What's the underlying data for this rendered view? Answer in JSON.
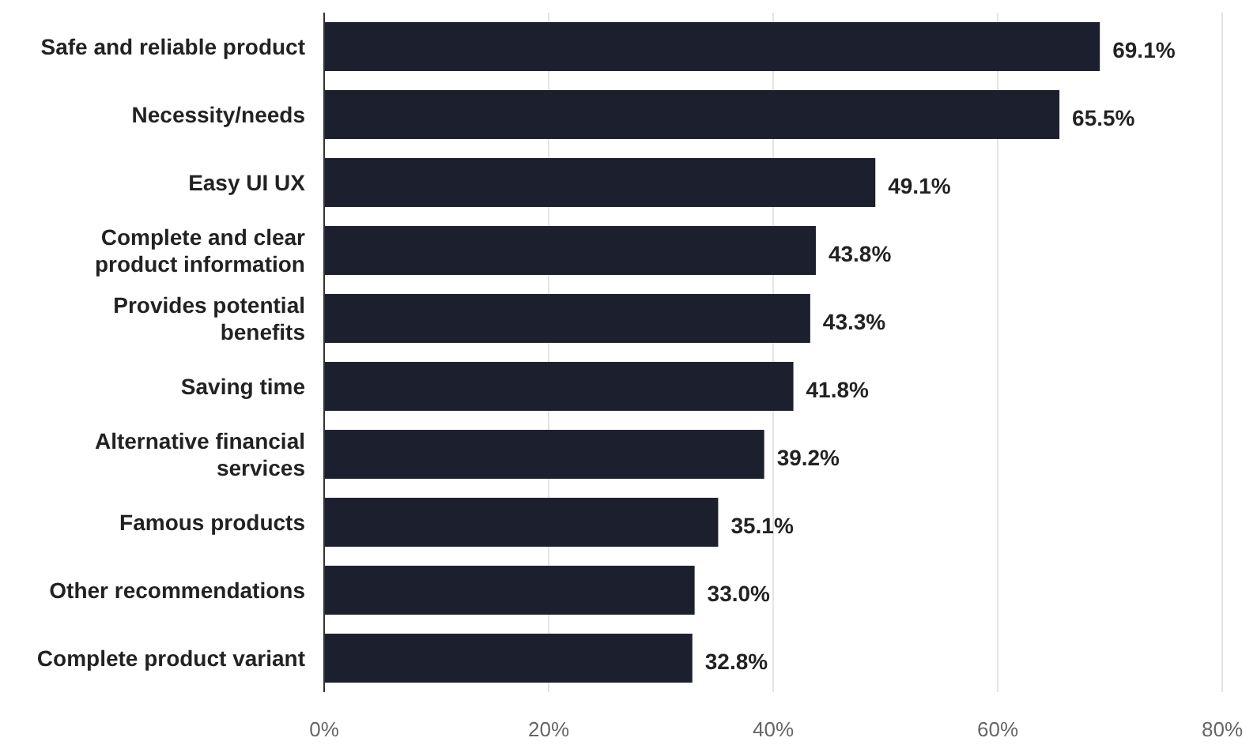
{
  "chart_data": {
    "type": "bar",
    "orientation": "horizontal",
    "categories": [
      "Safe and reliable product",
      "Necessity/needs",
      "Easy UI UX",
      "Complete and clear product information",
      "Provides potential benefits",
      "Saving time",
      "Alternative financial services",
      "Famous products",
      "Other recommendations",
      "Complete product variant"
    ],
    "values": [
      69.1,
      65.5,
      49.1,
      43.8,
      43.3,
      41.8,
      39.2,
      35.1,
      33.0,
      32.8
    ],
    "value_labels": [
      "69.1%",
      "65.5%",
      "49.1%",
      "43.8%",
      "43.3%",
      "41.8%",
      "39.2%",
      "35.1%",
      "33.0%",
      "32.8%"
    ],
    "color": "#1c1f2e",
    "xlim": [
      0,
      80
    ],
    "xticks": [
      {
        "value": 0,
        "label": "0%"
      },
      {
        "value": 20,
        "label": "20%"
      },
      {
        "value": 40,
        "label": "40%"
      },
      {
        "value": 60,
        "label": "60%"
      },
      {
        "value": 80,
        "label": "80%"
      }
    ],
    "grid": "x"
  }
}
